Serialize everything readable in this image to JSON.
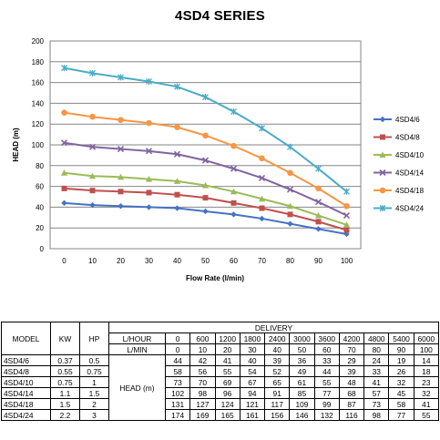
{
  "chart_data": {
    "type": "line",
    "title": "4SD4 SERIES",
    "xlabel": "Flow Rate (l/min)",
    "ylabel": "HEAD (m)",
    "x": [
      0,
      10,
      20,
      30,
      40,
      50,
      60,
      70,
      80,
      90,
      100
    ],
    "xlim": [
      0,
      100
    ],
    "ylim": [
      0,
      200
    ],
    "yticks": [
      0,
      20,
      40,
      60,
      80,
      100,
      120,
      140,
      160,
      180,
      200
    ],
    "grid": true,
    "legend": "right",
    "series": [
      {
        "name": "4SD4/6",
        "color": "#4472C4",
        "marker": "diamond",
        "values": [
          44,
          42,
          41,
          40,
          39,
          36,
          33,
          29,
          24,
          19,
          14
        ]
      },
      {
        "name": "4SD4/8",
        "color": "#C0504D",
        "marker": "square",
        "values": [
          58,
          56,
          55,
          54,
          52,
          49,
          44,
          39,
          33,
          26,
          18
        ]
      },
      {
        "name": "4SD4/10",
        "color": "#9BBB59",
        "marker": "triangle",
        "values": [
          73,
          70,
          69,
          67,
          65,
          61,
          55,
          48,
          41,
          32,
          23
        ]
      },
      {
        "name": "4SD4/14",
        "color": "#8064A2",
        "marker": "x",
        "values": [
          102,
          98,
          96,
          94,
          91,
          85,
          77,
          68,
          57,
          45,
          32
        ]
      },
      {
        "name": "4SD4/18",
        "color": "#F79646",
        "marker": "circle",
        "values": [
          131,
          127,
          124,
          121,
          117,
          109,
          99,
          87,
          73,
          58,
          41
        ]
      },
      {
        "name": "4SD4/24",
        "color": "#4BACC6",
        "marker": "star",
        "values": [
          174,
          169,
          165,
          161,
          156,
          146,
          132,
          116,
          98,
          77,
          55
        ]
      }
    ]
  },
  "table": {
    "model_header": "MODEL",
    "kw_header": "KW",
    "hp_header": "HP",
    "delivery_header": "DELIVERY",
    "lhour_label": "L/HOUR",
    "lmin_label": "L/MIN",
    "head_label": "HEAD (m)",
    "lhour": [
      "0",
      "600",
      "1200",
      "1800",
      "2400",
      "3000",
      "3600",
      "4200",
      "4800",
      "5400",
      "6000"
    ],
    "lmin": [
      "0",
      "10",
      "20",
      "30",
      "40",
      "50",
      "60",
      "70",
      "80",
      "90",
      "100"
    ],
    "rows": [
      {
        "model": "4SD4/6",
        "kw": "0.37",
        "hp": "0.5",
        "heads": [
          "44",
          "42",
          "41",
          "40",
          "39",
          "36",
          "33",
          "29",
          "24",
          "19",
          "14"
        ]
      },
      {
        "model": "4SD4/8",
        "kw": "0.55",
        "hp": "0.75",
        "heads": [
          "58",
          "56",
          "55",
          "54",
          "52",
          "49",
          "44",
          "39",
          "33",
          "26",
          "18"
        ]
      },
      {
        "model": "4SD4/10",
        "kw": "0.75",
        "hp": "1",
        "heads": [
          "73",
          "70",
          "69",
          "67",
          "65",
          "61",
          "55",
          "48",
          "41",
          "32",
          "23"
        ]
      },
      {
        "model": "4SD4/14",
        "kw": "1.1",
        "hp": "1.5",
        "heads": [
          "102",
          "98",
          "96",
          "94",
          "91",
          "85",
          "77",
          "68",
          "57",
          "45",
          "32"
        ]
      },
      {
        "model": "4SD4/18",
        "kw": "1.5",
        "hp": "2",
        "heads": [
          "131",
          "127",
          "124",
          "121",
          "117",
          "109",
          "99",
          "87",
          "73",
          "58",
          "41"
        ]
      },
      {
        "model": "4SD4/24",
        "kw": "2.2",
        "hp": "3",
        "heads": [
          "174",
          "169",
          "165",
          "161",
          "156",
          "146",
          "132",
          "116",
          "98",
          "77",
          "55"
        ]
      }
    ]
  }
}
